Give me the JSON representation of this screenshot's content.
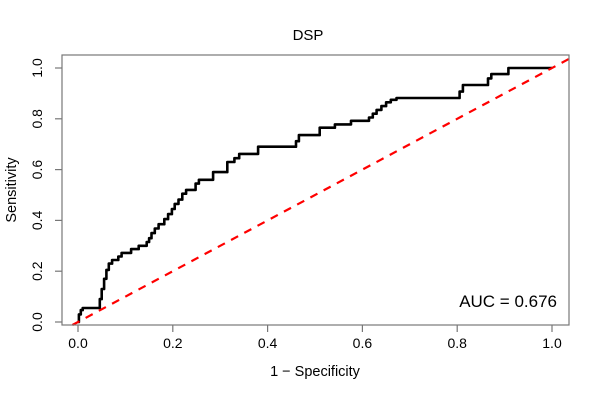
{
  "annotation": {
    "auc_label": "AUC = 0.676"
  },
  "colors": {
    "curve": "#000000",
    "diagonal": "#ff0000",
    "box": "#777777",
    "text": "#000000",
    "background": "#ffffff"
  },
  "chart_data": {
    "type": "line",
    "subtype": "roc-step-curve",
    "title": "DSP",
    "xlabel": "1 − Specificity",
    "ylabel": "Sensitivity",
    "xlim": [
      0,
      1
    ],
    "ylim": [
      0,
      1
    ],
    "grid": false,
    "legend": "none",
    "auc": 0.676,
    "x_ticks": [
      0.0,
      0.2,
      0.4,
      0.6,
      0.8,
      1.0
    ],
    "x_tick_labels": [
      "0.0",
      "0.2",
      "0.4",
      "0.6",
      "0.8",
      "1.0"
    ],
    "y_ticks": [
      0.0,
      0.2,
      0.4,
      0.6,
      0.8,
      1.0
    ],
    "y_tick_labels": [
      "0.0",
      "0.2",
      "0.4",
      "0.6",
      "0.8",
      "1.0"
    ],
    "series": [
      {
        "name": "ROC curve (DSP)",
        "color": "#000000",
        "style": "solid",
        "width": 2.6,
        "extend_to_box": false,
        "points": [
          [
            0.0,
            0.0
          ],
          [
            0.002,
            0.0
          ],
          [
            0.002,
            0.03
          ],
          [
            0.006,
            0.03
          ],
          [
            0.006,
            0.047
          ],
          [
            0.01,
            0.047
          ],
          [
            0.01,
            0.055
          ],
          [
            0.046,
            0.055
          ],
          [
            0.046,
            0.09
          ],
          [
            0.05,
            0.09
          ],
          [
            0.05,
            0.13
          ],
          [
            0.055,
            0.13
          ],
          [
            0.055,
            0.17
          ],
          [
            0.06,
            0.17
          ],
          [
            0.06,
            0.205
          ],
          [
            0.065,
            0.205
          ],
          [
            0.065,
            0.23
          ],
          [
            0.072,
            0.23
          ],
          [
            0.072,
            0.244
          ],
          [
            0.085,
            0.244
          ],
          [
            0.085,
            0.258
          ],
          [
            0.092,
            0.258
          ],
          [
            0.092,
            0.272
          ],
          [
            0.112,
            0.272
          ],
          [
            0.112,
            0.287
          ],
          [
            0.128,
            0.287
          ],
          [
            0.128,
            0.3
          ],
          [
            0.145,
            0.3
          ],
          [
            0.145,
            0.315
          ],
          [
            0.15,
            0.315
          ],
          [
            0.15,
            0.33
          ],
          [
            0.155,
            0.33
          ],
          [
            0.155,
            0.35
          ],
          [
            0.162,
            0.35
          ],
          [
            0.162,
            0.368
          ],
          [
            0.17,
            0.368
          ],
          [
            0.17,
            0.385
          ],
          [
            0.182,
            0.385
          ],
          [
            0.182,
            0.405
          ],
          [
            0.19,
            0.405
          ],
          [
            0.19,
            0.425
          ],
          [
            0.198,
            0.425
          ],
          [
            0.198,
            0.445
          ],
          [
            0.204,
            0.445
          ],
          [
            0.204,
            0.465
          ],
          [
            0.212,
            0.465
          ],
          [
            0.212,
            0.482
          ],
          [
            0.22,
            0.482
          ],
          [
            0.22,
            0.505
          ],
          [
            0.228,
            0.505
          ],
          [
            0.228,
            0.52
          ],
          [
            0.248,
            0.52
          ],
          [
            0.248,
            0.545
          ],
          [
            0.255,
            0.545
          ],
          [
            0.255,
            0.56
          ],
          [
            0.285,
            0.56
          ],
          [
            0.285,
            0.59
          ],
          [
            0.315,
            0.59
          ],
          [
            0.315,
            0.63
          ],
          [
            0.33,
            0.63
          ],
          [
            0.33,
            0.645
          ],
          [
            0.34,
            0.645
          ],
          [
            0.34,
            0.662
          ],
          [
            0.38,
            0.662
          ],
          [
            0.38,
            0.69
          ],
          [
            0.46,
            0.69
          ],
          [
            0.46,
            0.712
          ],
          [
            0.466,
            0.712
          ],
          [
            0.466,
            0.736
          ],
          [
            0.51,
            0.736
          ],
          [
            0.51,
            0.765
          ],
          [
            0.542,
            0.765
          ],
          [
            0.542,
            0.778
          ],
          [
            0.576,
            0.778
          ],
          [
            0.576,
            0.792
          ],
          [
            0.614,
            0.792
          ],
          [
            0.614,
            0.805
          ],
          [
            0.622,
            0.805
          ],
          [
            0.622,
            0.82
          ],
          [
            0.63,
            0.82
          ],
          [
            0.63,
            0.835
          ],
          [
            0.64,
            0.835
          ],
          [
            0.64,
            0.85
          ],
          [
            0.65,
            0.85
          ],
          [
            0.65,
            0.865
          ],
          [
            0.66,
            0.865
          ],
          [
            0.66,
            0.875
          ],
          [
            0.672,
            0.875
          ],
          [
            0.672,
            0.882
          ],
          [
            0.805,
            0.882
          ],
          [
            0.805,
            0.907
          ],
          [
            0.812,
            0.907
          ],
          [
            0.812,
            0.933
          ],
          [
            0.865,
            0.933
          ],
          [
            0.865,
            0.959
          ],
          [
            0.872,
            0.959
          ],
          [
            0.872,
            0.976
          ],
          [
            0.908,
            0.976
          ],
          [
            0.908,
            1.0
          ],
          [
            1.0,
            1.0
          ]
        ]
      },
      {
        "name": "chance diagonal",
        "color": "#ff0000",
        "style": "dashed",
        "width": 2.2,
        "extend_to_box": true,
        "points": [
          [
            0.0,
            0.0
          ],
          [
            1.0,
            1.0
          ]
        ]
      }
    ]
  }
}
